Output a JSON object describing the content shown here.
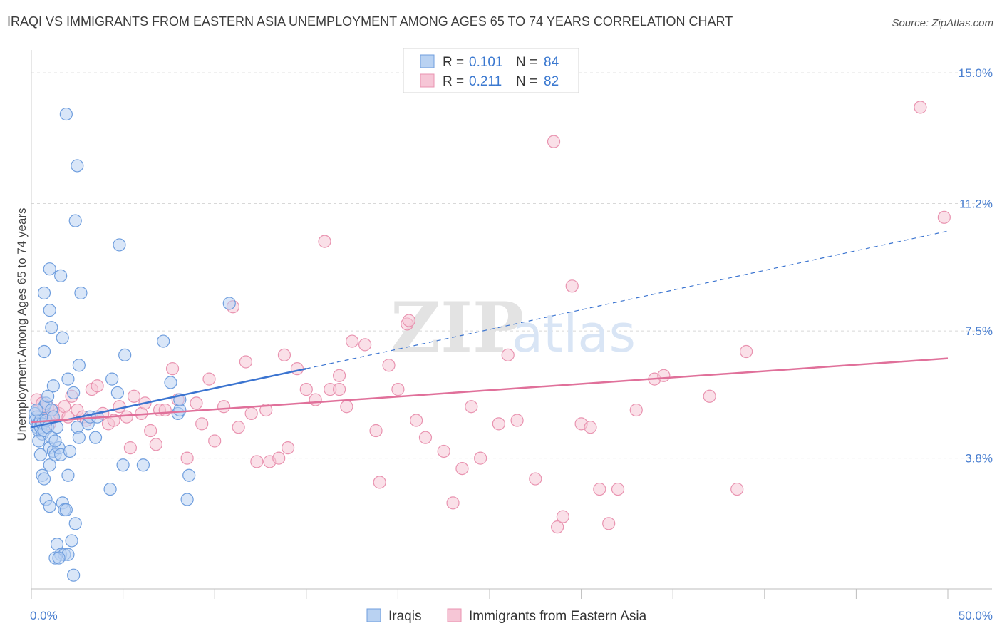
{
  "title": "IRAQI VS IMMIGRANTS FROM EASTERN ASIA UNEMPLOYMENT AMONG AGES 65 TO 74 YEARS CORRELATION CHART",
  "source": "Source: ZipAtlas.com",
  "watermark": {
    "zip": "ZIP",
    "atlas": "atlas"
  },
  "legend": {
    "r_label": "R =",
    "n_label": "N =",
    "rows": [
      {
        "r": "0.101",
        "n": "84"
      },
      {
        "r": "0.211",
        "n": "82"
      }
    ]
  },
  "bottom_legend": [
    "Iraqis",
    "Immigrants from Eastern Asia"
  ],
  "colors": {
    "blue_fill": "#b9d2f2",
    "blue_stroke": "#6f9ede",
    "blue_line": "#3b74d0",
    "pink_fill": "#f6c6d6",
    "pink_stroke": "#e993b0",
    "pink_line": "#e0709a",
    "grid": "#d8d8d8",
    "tick_text": "#4a7fd0"
  },
  "chart_data": {
    "type": "scatter",
    "title": "IRAQI VS IMMIGRANTS FROM EASTERN ASIA UNEMPLOYMENT AMONG AGES 65 TO 74 YEARS CORRELATION CHART",
    "xlabel": "",
    "ylabel": "Unemployment Among Ages 65 to 74 years",
    "xlim": [
      0,
      50
    ],
    "ylim": [
      0,
      15.5
    ],
    "x_ticks_labels": [
      "0.0%",
      "50.0%"
    ],
    "y_ticks": [
      3.8,
      7.5,
      11.2,
      15.0
    ],
    "y_tick_labels": [
      "3.8%",
      "7.5%",
      "11.2%",
      "15.0%"
    ],
    "grid": "horizontal dashed",
    "legend_position": "top-center",
    "series": [
      {
        "name": "Iraqis",
        "r": 0.101,
        "n": 84,
        "trend": {
          "x0": 0.0,
          "y0": 4.7,
          "x1": 15.0,
          "y1": 6.4,
          "dashed_to_x": 50.0,
          "dashed_to_y": 10.4
        },
        "points": [
          [
            0.2,
            5.1
          ],
          [
            0.2,
            4.9
          ],
          [
            0.3,
            4.7
          ],
          [
            0.3,
            5.0
          ],
          [
            0.4,
            4.8
          ],
          [
            0.4,
            4.6
          ],
          [
            0.5,
            4.7
          ],
          [
            0.5,
            4.9
          ],
          [
            0.6,
            4.8
          ],
          [
            0.6,
            4.5
          ],
          [
            0.7,
            5.3
          ],
          [
            0.7,
            4.6
          ],
          [
            0.8,
            5.4
          ],
          [
            0.8,
            4.9
          ],
          [
            0.9,
            5.6
          ],
          [
            0.9,
            4.7
          ],
          [
            1.0,
            4.1
          ],
          [
            1.0,
            3.6
          ],
          [
            1.1,
            5.2
          ],
          [
            1.1,
            4.4
          ],
          [
            0.4,
            4.3
          ],
          [
            0.5,
            3.9
          ],
          [
            0.6,
            3.3
          ],
          [
            0.7,
            3.2
          ],
          [
            0.8,
            2.6
          ],
          [
            1.0,
            2.4
          ],
          [
            1.2,
            4.0
          ],
          [
            1.3,
            3.9
          ],
          [
            1.4,
            4.7
          ],
          [
            1.5,
            4.1
          ],
          [
            1.6,
            3.9
          ],
          [
            1.7,
            2.5
          ],
          [
            1.8,
            2.3
          ],
          [
            1.9,
            2.3
          ],
          [
            2.0,
            3.3
          ],
          [
            2.1,
            4.0
          ],
          [
            2.3,
            5.7
          ],
          [
            2.4,
            1.9
          ],
          [
            2.5,
            4.7
          ],
          [
            2.6,
            4.4
          ],
          [
            1.4,
            1.3
          ],
          [
            1.6,
            1.0
          ],
          [
            1.8,
            1.0
          ],
          [
            2.0,
            1.0
          ],
          [
            2.2,
            1.4
          ],
          [
            2.3,
            0.4
          ],
          [
            1.3,
            0.9
          ],
          [
            1.5,
            0.9
          ],
          [
            0.7,
            6.9
          ],
          [
            1.0,
            8.1
          ],
          [
            1.1,
            7.6
          ],
          [
            1.7,
            7.3
          ],
          [
            2.0,
            6.1
          ],
          [
            2.6,
            6.5
          ],
          [
            1.2,
            5.9
          ],
          [
            0.7,
            8.6
          ],
          [
            1.0,
            9.3
          ],
          [
            1.6,
            9.1
          ],
          [
            2.7,
            8.6
          ],
          [
            2.4,
            10.7
          ],
          [
            2.5,
            12.3
          ],
          [
            1.9,
            13.8
          ],
          [
            4.8,
            10.0
          ],
          [
            3.1,
            4.8
          ],
          [
            3.2,
            5.0
          ],
          [
            3.5,
            4.4
          ],
          [
            3.6,
            5.0
          ],
          [
            4.4,
            6.1
          ],
          [
            4.7,
            5.7
          ],
          [
            5.0,
            3.6
          ],
          [
            5.1,
            6.8
          ],
          [
            4.3,
            2.9
          ],
          [
            6.1,
            3.6
          ],
          [
            7.2,
            7.2
          ],
          [
            7.6,
            6.0
          ],
          [
            8.0,
            5.1
          ],
          [
            8.1,
            5.2
          ],
          [
            8.1,
            5.5
          ],
          [
            8.5,
            2.6
          ],
          [
            8.6,
            3.3
          ],
          [
            10.8,
            8.3
          ],
          [
            1.3,
            4.3
          ],
          [
            1.2,
            5.0
          ],
          [
            0.3,
            5.2
          ]
        ]
      },
      {
        "name": "Immigrants from Eastern Asia",
        "r": 0.211,
        "n": 82,
        "trend": {
          "x0": 0.0,
          "y0": 4.85,
          "x1": 50.0,
          "y1": 6.7
        },
        "points": [
          [
            0.3,
            5.5
          ],
          [
            0.4,
            5.2
          ],
          [
            0.5,
            5.0
          ],
          [
            0.6,
            5.4
          ],
          [
            0.7,
            4.9
          ],
          [
            0.8,
            5.1
          ],
          [
            0.9,
            5.3
          ],
          [
            1.0,
            4.8
          ],
          [
            1.1,
            5.0
          ],
          [
            1.2,
            5.2
          ],
          [
            1.5,
            5.1
          ],
          [
            1.8,
            5.3
          ],
          [
            2.0,
            5.0
          ],
          [
            2.2,
            5.6
          ],
          [
            2.5,
            5.2
          ],
          [
            2.8,
            5.0
          ],
          [
            3.0,
            4.9
          ],
          [
            3.3,
            5.8
          ],
          [
            3.6,
            5.9
          ],
          [
            3.9,
            5.1
          ],
          [
            4.2,
            4.8
          ],
          [
            4.5,
            4.9
          ],
          [
            4.8,
            5.3
          ],
          [
            5.2,
            5.0
          ],
          [
            5.4,
            4.1
          ],
          [
            5.6,
            5.6
          ],
          [
            6.0,
            5.1
          ],
          [
            6.2,
            5.4
          ],
          [
            6.5,
            4.6
          ],
          [
            6.8,
            4.2
          ],
          [
            7.0,
            5.2
          ],
          [
            7.3,
            5.2
          ],
          [
            7.7,
            6.4
          ],
          [
            8.0,
            5.5
          ],
          [
            8.5,
            3.8
          ],
          [
            9.0,
            5.4
          ],
          [
            9.3,
            4.8
          ],
          [
            9.7,
            6.1
          ],
          [
            10.0,
            4.3
          ],
          [
            10.5,
            5.3
          ],
          [
            11.0,
            8.2
          ],
          [
            11.3,
            4.7
          ],
          [
            11.7,
            6.6
          ],
          [
            12.0,
            5.1
          ],
          [
            12.3,
            3.7
          ],
          [
            12.8,
            5.2
          ],
          [
            13.0,
            3.7
          ],
          [
            13.5,
            3.8
          ],
          [
            13.8,
            6.8
          ],
          [
            14.0,
            4.1
          ],
          [
            14.5,
            6.4
          ],
          [
            15.0,
            5.8
          ],
          [
            15.5,
            5.5
          ],
          [
            16.0,
            10.1
          ],
          [
            16.3,
            5.8
          ],
          [
            16.8,
            6.2
          ],
          [
            17.2,
            5.3
          ],
          [
            17.5,
            7.2
          ],
          [
            18.2,
            7.1
          ],
          [
            18.8,
            4.6
          ],
          [
            19.0,
            3.1
          ],
          [
            19.5,
            6.5
          ],
          [
            20.0,
            5.8
          ],
          [
            20.5,
            7.7
          ],
          [
            21.0,
            4.9
          ],
          [
            21.5,
            4.4
          ],
          [
            22.5,
            4.0
          ],
          [
            23.0,
            2.5
          ],
          [
            23.5,
            3.5
          ],
          [
            24.0,
            5.3
          ],
          [
            24.5,
            3.8
          ],
          [
            25.5,
            4.8
          ],
          [
            26.0,
            6.8
          ],
          [
            26.5,
            4.9
          ],
          [
            27.5,
            3.2
          ],
          [
            28.5,
            13.0
          ],
          [
            28.7,
            1.8
          ],
          [
            29.0,
            2.1
          ],
          [
            29.5,
            8.8
          ],
          [
            30.0,
            4.8
          ],
          [
            30.5,
            4.7
          ],
          [
            31.0,
            2.9
          ]
        ]
      }
    ],
    "extra_points_pink": [
      [
        31.5,
        1.9
      ],
      [
        32.0,
        2.9
      ],
      [
        33.0,
        5.2
      ],
      [
        34.0,
        6.1
      ],
      [
        34.5,
        6.2
      ],
      [
        37.0,
        5.6
      ],
      [
        38.5,
        2.9
      ],
      [
        39.0,
        6.9
      ],
      [
        48.5,
        14.0
      ],
      [
        49.8,
        10.8
      ],
      [
        16.8,
        5.8
      ],
      [
        20.6,
        7.8
      ]
    ]
  }
}
